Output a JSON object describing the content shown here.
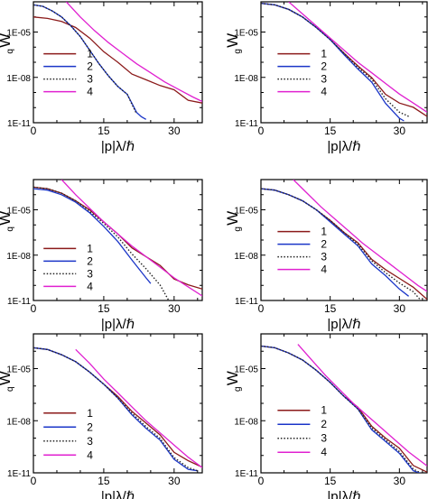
{
  "figure": {
    "colors": {
      "1": "#8b1a1a",
      "2": "#1a35c8",
      "3": "#222222",
      "4": "#e020d0"
    },
    "legend_style": {
      "3": "dotted"
    }
  },
  "chart_data": [
    {
      "id": "r1c1",
      "type": "line",
      "xlabel": "|p|λ/ℏ",
      "ylabel": "W",
      "ylabel_sub": "q",
      "xlim": [
        0,
        36
      ],
      "ylim": [
        -11,
        -3
      ],
      "yscale": "log",
      "xticks": [
        "0",
        "15",
        "30"
      ],
      "yticks": [
        "1E-05",
        "1E-08",
        "1E-11"
      ],
      "legend": [
        "1",
        "2",
        "3",
        "4"
      ],
      "legend_placement": "left-middle",
      "series": [
        {
          "name": "1",
          "x": [
            0,
            3,
            6,
            9,
            12,
            15,
            18,
            21,
            24,
            27,
            30,
            33,
            36
          ],
          "y": [
            -4.0,
            -4.1,
            -4.3,
            -4.7,
            -5.4,
            -6.3,
            -7.0,
            -7.6,
            -8.1,
            -8.6,
            -9.0,
            -9.4,
            -9.7
          ]
        },
        {
          "name": "2",
          "x": [
            0,
            2,
            4,
            6,
            8,
            10,
            12,
            14,
            16,
            18,
            20,
            22,
            23,
            24
          ],
          "y": [
            -3.2,
            -3.3,
            -3.6,
            -4.0,
            -4.6,
            -5.3,
            -6.2,
            -7.1,
            -7.9,
            -8.6,
            -9.3,
            -10.2,
            -10.6,
            -10.9
          ]
        },
        {
          "name": "3",
          "x": [
            0,
            2,
            4,
            6,
            8,
            10,
            12,
            14,
            16,
            18,
            20,
            22
          ],
          "y": [
            -3.2,
            -3.3,
            -3.6,
            -4.0,
            -4.6,
            -5.3,
            -6.2,
            -7.1,
            -7.9,
            -8.6,
            -9.3,
            -10.3
          ]
        },
        {
          "name": "4",
          "x": [
            7,
            10,
            13,
            16,
            19,
            22,
            25,
            28,
            31,
            34,
            36
          ],
          "y": [
            -3.0,
            -4.0,
            -4.9,
            -5.7,
            -6.4,
            -7.1,
            -7.7,
            -8.3,
            -8.8,
            -9.3,
            -9.6
          ]
        }
      ]
    },
    {
      "id": "r1c2",
      "type": "line",
      "xlabel": "|p|λ/ℏ",
      "ylabel": "W",
      "ylabel_sub": "g",
      "xlim": [
        0,
        36
      ],
      "ylim": [
        -11,
        -3
      ],
      "yscale": "log",
      "xticks": [
        "0",
        "15",
        "30"
      ],
      "yticks": [
        "1E-05",
        "1E-08",
        "1E-11"
      ],
      "legend": [
        "1",
        "2",
        "3",
        "4"
      ],
      "legend_placement": "right-middle",
      "series": [
        {
          "name": "1",
          "x": [
            0,
            3,
            6,
            9,
            12,
            15,
            18,
            21,
            24,
            27,
            30,
            33,
            36
          ],
          "y": [
            -3.1,
            -3.2,
            -3.5,
            -4.0,
            -4.7,
            -5.5,
            -6.4,
            -7.3,
            -8.2,
            -9.0,
            -9.7,
            -10.1,
            -10.4
          ]
        },
        {
          "name": "2",
          "x": [
            0,
            3,
            6,
            9,
            12,
            15,
            18,
            21,
            24,
            27,
            30,
            31
          ],
          "y": [
            -3.1,
            -3.2,
            -3.5,
            -4.0,
            -4.7,
            -5.5,
            -6.5,
            -7.5,
            -8.5,
            -9.6,
            -10.7,
            -11.0
          ]
        },
        {
          "name": "3",
          "x": [
            0,
            3,
            6,
            9,
            12,
            15,
            18,
            21,
            24,
            27,
            30,
            32
          ],
          "y": [
            -3.1,
            -3.2,
            -3.5,
            -4.0,
            -4.7,
            -5.5,
            -6.4,
            -7.4,
            -8.3,
            -9.3,
            -10.3,
            -10.7
          ]
        },
        {
          "name": "4",
          "x": [
            6,
            9,
            12,
            15,
            18,
            21,
            24,
            27,
            30,
            33,
            36
          ],
          "y": [
            -3.0,
            -3.8,
            -4.6,
            -5.4,
            -6.2,
            -7.0,
            -7.7,
            -8.4,
            -9.1,
            -9.7,
            -10.3
          ]
        }
      ]
    },
    {
      "id": "r2c1",
      "type": "line",
      "xlabel": "|p|λ/ℏ",
      "ylabel": "W",
      "ylabel_sub": "q",
      "xlim": [
        0,
        36
      ],
      "ylim": [
        -11,
        -3
      ],
      "yscale": "log",
      "xticks": [
        "0",
        "15",
        "30"
      ],
      "yticks": [
        "1E-05",
        "1E-08",
        "1E-11"
      ],
      "legend": [
        "1",
        "2",
        "3",
        "4"
      ],
      "legend_placement": "left-bottom",
      "series": [
        {
          "name": "1",
          "x": [
            0,
            3,
            6,
            9,
            12,
            15,
            18,
            21,
            24,
            27,
            30,
            33,
            36
          ],
          "y": [
            -3.5,
            -3.6,
            -3.9,
            -4.4,
            -5.0,
            -5.8,
            -6.6,
            -7.4,
            -8.1,
            -8.8,
            -9.4,
            -9.9,
            -10.3
          ]
        },
        {
          "name": "2",
          "x": [
            0,
            3,
            6,
            9,
            12,
            15,
            18,
            21,
            24,
            25
          ],
          "y": [
            -3.6,
            -3.7,
            -4.0,
            -4.5,
            -5.2,
            -6.1,
            -7.1,
            -8.2,
            -9.5,
            -10.0
          ]
        },
        {
          "name": "3",
          "x": [
            0,
            3,
            6,
            9,
            12,
            15,
            18,
            21,
            24,
            27,
            29
          ],
          "y": [
            -3.5,
            -3.6,
            -3.9,
            -4.4,
            -5.1,
            -5.9,
            -6.8,
            -7.8,
            -8.9,
            -10.1,
            -10.9
          ]
        },
        {
          "name": "4",
          "x": [
            6,
            9,
            12,
            15,
            18,
            21,
            24,
            27,
            30,
            33,
            36
          ],
          "y": [
            -3.0,
            -4.0,
            -4.9,
            -5.8,
            -6.6,
            -7.4,
            -8.1,
            -8.8,
            -9.5,
            -10.1,
            -10.7
          ]
        }
      ]
    },
    {
      "id": "r2c2",
      "type": "line",
      "xlabel": "|p|λ/ℏ",
      "ylabel": "W",
      "ylabel_sub": "g",
      "xlim": [
        0,
        36
      ],
      "ylim": [
        -11,
        -3
      ],
      "yscale": "log",
      "xticks": [
        "0",
        "15",
        "30"
      ],
      "yticks": [
        "1E-05",
        "1E-08",
        "1E-11"
      ],
      "legend": [
        "1",
        "2",
        "3",
        "4"
      ],
      "legend_placement": "right-middle",
      "series": [
        {
          "name": "1",
          "x": [
            0,
            3,
            6,
            9,
            12,
            15,
            18,
            21,
            24,
            27,
            30,
            33,
            36
          ],
          "y": [
            -3.6,
            -3.7,
            -4.0,
            -4.4,
            -5.0,
            -5.7,
            -6.5,
            -7.3,
            -8.1,
            -8.9,
            -9.6,
            -10.3,
            -10.8
          ]
        },
        {
          "name": "2",
          "x": [
            0,
            3,
            6,
            9,
            12,
            15,
            18,
            21,
            24,
            27,
            30,
            32
          ],
          "y": [
            -3.6,
            -3.7,
            -4.0,
            -4.4,
            -5.0,
            -5.8,
            -6.6,
            -7.5,
            -8.4,
            -9.3,
            -10.3,
            -10.9
          ]
        },
        {
          "name": "3",
          "x": [
            0,
            3,
            6,
            9,
            12,
            15,
            18,
            21,
            24,
            27,
            30,
            33,
            35
          ],
          "y": [
            -3.6,
            -3.7,
            -4.0,
            -4.4,
            -5.0,
            -5.7,
            -6.5,
            -7.4,
            -8.2,
            -9.1,
            -9.9,
            -10.6,
            -11.0
          ]
        },
        {
          "name": "4",
          "x": [
            7,
            10,
            13,
            16,
            19,
            22,
            25,
            28,
            31,
            34,
            36
          ],
          "y": [
            -3.0,
            -3.9,
            -4.8,
            -5.6,
            -6.4,
            -7.2,
            -7.9,
            -8.6,
            -9.3,
            -10.0,
            -10.4
          ]
        }
      ]
    },
    {
      "id": "r3c1",
      "type": "line",
      "xlabel": "|p|λ/ℏ",
      "ylabel": "W",
      "ylabel_sub": "q",
      "xlim": [
        0,
        36
      ],
      "ylim": [
        -11,
        -3
      ],
      "yscale": "log",
      "xticks": [
        "0",
        "15",
        "30"
      ],
      "yticks": [
        "1E-05",
        "1E-08",
        "1E-11"
      ],
      "legend": [
        "1",
        "2",
        "3",
        "4"
      ],
      "legend_placement": "left-bottom",
      "series": [
        {
          "name": "1",
          "x": [
            0,
            3,
            6,
            9,
            12,
            15,
            18,
            21,
            24,
            27,
            30,
            33,
            36
          ],
          "y": [
            -3.8,
            -3.9,
            -4.2,
            -4.6,
            -5.2,
            -5.9,
            -6.6,
            -7.4,
            -8.2,
            -9.0,
            -9.7,
            -10.3,
            -10.8
          ]
        },
        {
          "name": "2",
          "x": [
            0,
            3,
            6,
            9,
            12,
            15,
            18,
            21,
            24,
            27,
            30,
            33,
            35
          ],
          "y": [
            -3.8,
            -3.9,
            -4.2,
            -4.6,
            -5.2,
            -5.9,
            -6.7,
            -7.6,
            -8.5,
            -9.3,
            -10.1,
            -10.8,
            -11.0
          ]
        },
        {
          "name": "3",
          "x": [
            0,
            3,
            6,
            9,
            12,
            15,
            18,
            21,
            24,
            27,
            30,
            33,
            35
          ],
          "y": [
            -3.8,
            -3.9,
            -4.2,
            -4.6,
            -5.2,
            -5.9,
            -6.7,
            -7.5,
            -8.4,
            -9.2,
            -10.0,
            -10.7,
            -11.0
          ]
        },
        {
          "name": "4",
          "x": [
            9,
            12,
            15,
            18,
            21,
            24,
            27,
            30,
            33,
            36
          ],
          "y": [
            -3.9,
            -4.7,
            -5.6,
            -6.4,
            -7.2,
            -8.0,
            -8.7,
            -9.4,
            -10.1,
            -10.7
          ]
        }
      ]
    },
    {
      "id": "r3c2",
      "type": "line",
      "xlabel": "|p|λ/ℏ",
      "ylabel": "W",
      "ylabel_sub": "g",
      "xlim": [
        0,
        36
      ],
      "ylim": [
        -11,
        -3
      ],
      "yscale": "log",
      "xticks": [
        "0",
        "15",
        "30"
      ],
      "yticks": [
        "1E-05",
        "1E-08",
        "1E-11"
      ],
      "legend": [
        "1",
        "2",
        "3",
        "4"
      ],
      "legend_placement": "right-bottom",
      "series": [
        {
          "name": "1",
          "x": [
            0,
            3,
            6,
            9,
            12,
            15,
            18,
            21,
            24,
            27,
            30,
            33,
            36
          ],
          "y": [
            -3.7,
            -3.8,
            -4.1,
            -4.5,
            -5.1,
            -5.8,
            -6.6,
            -7.4,
            -8.2,
            -9.0,
            -9.7,
            -10.4,
            -10.9
          ]
        },
        {
          "name": "2",
          "x": [
            0,
            3,
            6,
            9,
            12,
            15,
            18,
            21,
            24,
            27,
            30,
            33,
            35
          ],
          "y": [
            -3.7,
            -3.8,
            -4.1,
            -4.5,
            -5.1,
            -5.8,
            -6.6,
            -7.5,
            -8.4,
            -9.2,
            -10.0,
            -10.7,
            -11.0
          ]
        },
        {
          "name": "3",
          "x": [
            0,
            3,
            6,
            9,
            12,
            15,
            18,
            21,
            24,
            27,
            30,
            33,
            35
          ],
          "y": [
            -3.7,
            -3.8,
            -4.1,
            -4.5,
            -5.1,
            -5.8,
            -6.6,
            -7.5,
            -8.3,
            -9.1,
            -9.9,
            -10.6,
            -11.0
          ]
        },
        {
          "name": "4",
          "x": [
            8,
            11,
            14,
            17,
            20,
            23,
            26,
            29,
            32,
            35,
            36
          ],
          "y": [
            -3.6,
            -4.5,
            -5.4,
            -6.2,
            -7.0,
            -7.7,
            -8.4,
            -9.1,
            -9.8,
            -10.4,
            -10.6
          ]
        }
      ]
    }
  ]
}
